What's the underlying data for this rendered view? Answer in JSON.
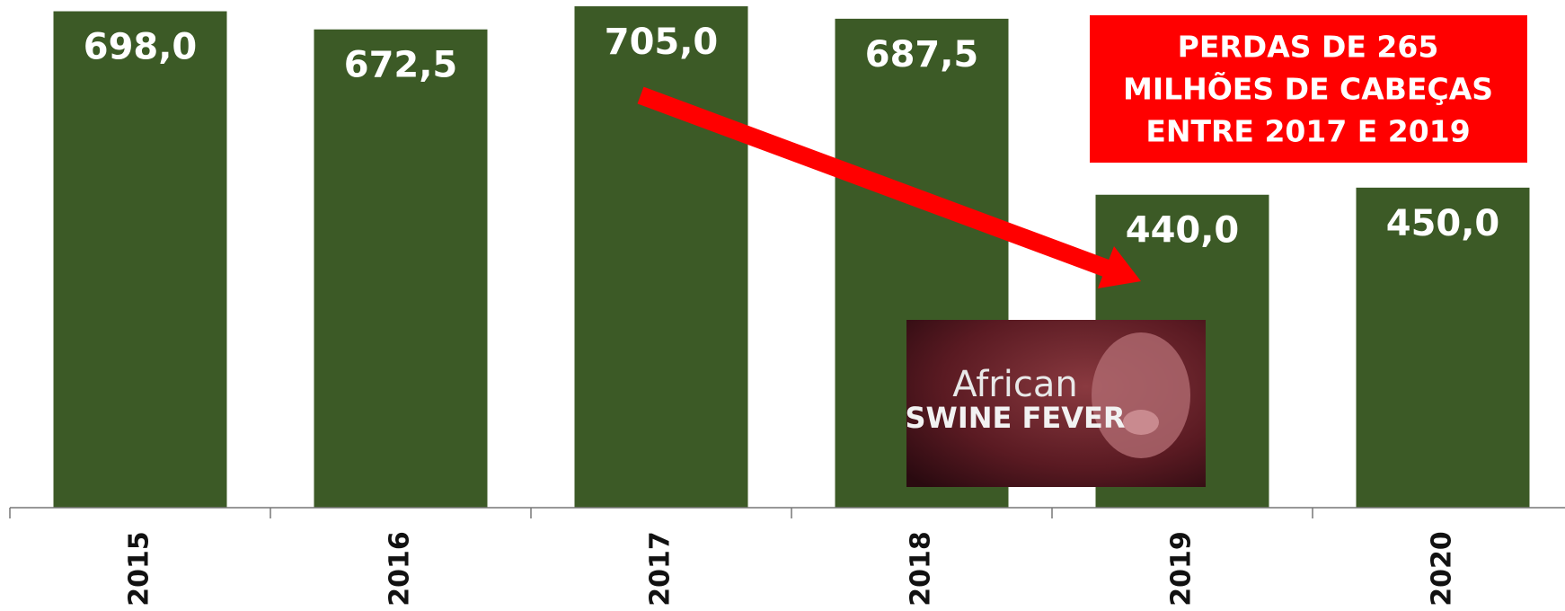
{
  "chart_data": {
    "type": "bar",
    "categories": [
      "2015",
      "2016",
      "2017",
      "2018",
      "2019",
      "2020"
    ],
    "values": [
      698.0,
      672.5,
      705.0,
      687.5,
      440.0,
      450.0
    ],
    "value_labels": [
      "698,0",
      "672,5",
      "705,0",
      "687,5",
      "440,0",
      "450,0"
    ],
    "color": "#3c5a26",
    "annotation": [
      "PERDAS DE 265",
      "MILHÕES DE CABEÇAS",
      "ENTRE 2017 E 2019"
    ],
    "annotation_color": "#ff0000",
    "inset_text": [
      "African",
      "SWINE FEVER"
    ]
  }
}
